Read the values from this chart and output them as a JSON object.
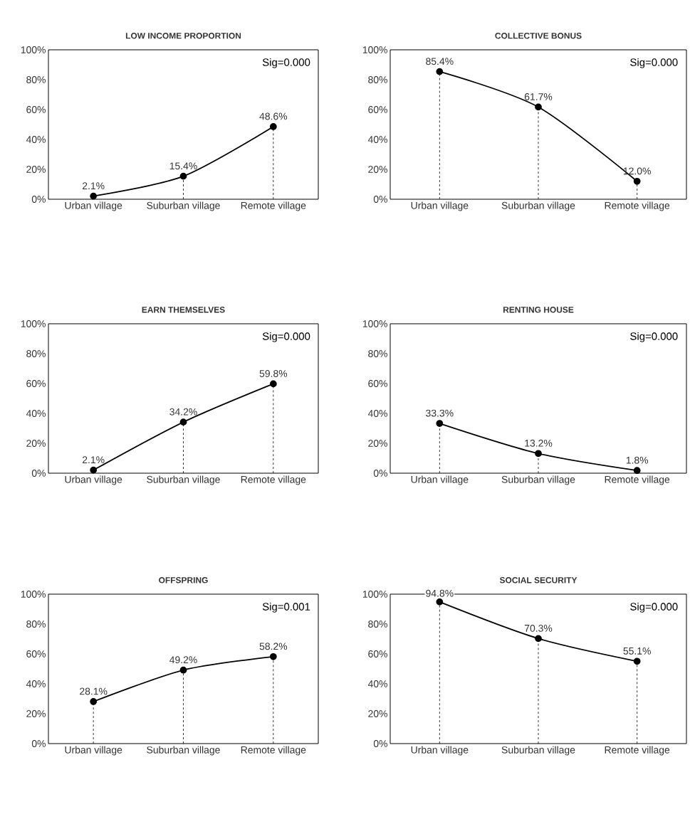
{
  "chart_data": [
    {
      "type": "line",
      "title": "LOW INCOME PROPORTION",
      "categories": [
        "Urban village",
        "Suburban village",
        "Remote village"
      ],
      "values": [
        2.1,
        15.4,
        48.6
      ],
      "value_labels": [
        "2.1%",
        "15.4%",
        "48.6%"
      ],
      "color": "#000000",
      "marker": "circle",
      "line_style": "solid",
      "ylim": [
        0,
        100
      ],
      "yticks": [
        {
          "value": 0,
          "label": "0%"
        },
        {
          "value": 20,
          "label": "20%"
        },
        {
          "value": 40,
          "label": "40%"
        },
        {
          "value": 60,
          "label": "60%"
        },
        {
          "value": 80,
          "label": "80%"
        },
        {
          "value": 100,
          "label": "100%"
        }
      ],
      "annotations": [
        "Sig=0.000"
      ]
    },
    {
      "type": "line",
      "title": "COLLECTIVE BONUS",
      "categories": [
        "Urban village",
        "Suburban village",
        "Remote village"
      ],
      "values": [
        85.4,
        61.7,
        12.0
      ],
      "value_labels": [
        "85.4%",
        "61.7%",
        "12.0%"
      ],
      "color": "#000000",
      "marker": "circle",
      "line_style": "solid",
      "ylim": [
        0,
        100
      ],
      "yticks": [
        {
          "value": 0,
          "label": "0%"
        },
        {
          "value": 20,
          "label": "20%"
        },
        {
          "value": 40,
          "label": "40%"
        },
        {
          "value": 60,
          "label": "60%"
        },
        {
          "value": 80,
          "label": "80%"
        },
        {
          "value": 100,
          "label": "100%"
        }
      ],
      "annotations": [
        "Sig=0.000"
      ]
    },
    {
      "type": "line",
      "title": "EARN THEMSELVES",
      "categories": [
        "Urban village",
        "Suburban village",
        "Remote village"
      ],
      "values": [
        2.1,
        34.2,
        59.8
      ],
      "value_labels": [
        "2.1%",
        "34.2%",
        "59.8%"
      ],
      "color": "#000000",
      "marker": "circle",
      "line_style": "solid",
      "ylim": [
        0,
        100
      ],
      "yticks": [
        {
          "value": 0,
          "label": "0%"
        },
        {
          "value": 20,
          "label": "20%"
        },
        {
          "value": 40,
          "label": "40%"
        },
        {
          "value": 60,
          "label": "60%"
        },
        {
          "value": 80,
          "label": "80%"
        },
        {
          "value": 100,
          "label": "100%"
        }
      ],
      "annotations": [
        "Sig=0.000"
      ]
    },
    {
      "type": "line",
      "title": "RENTING HOUSE",
      "categories": [
        "Urban village",
        "Suburban village",
        "Remote village"
      ],
      "values": [
        33.3,
        13.2,
        1.8
      ],
      "value_labels": [
        "33.3%",
        "13.2%",
        "1.8%"
      ],
      "color": "#000000",
      "marker": "circle",
      "line_style": "solid",
      "ylim": [
        0,
        100
      ],
      "yticks": [
        {
          "value": 0,
          "label": "0%"
        },
        {
          "value": 20,
          "label": "20%"
        },
        {
          "value": 40,
          "label": "40%"
        },
        {
          "value": 60,
          "label": "60%"
        },
        {
          "value": 80,
          "label": "80%"
        },
        {
          "value": 100,
          "label": "100%"
        }
      ],
      "annotations": [
        "Sig=0.000"
      ]
    },
    {
      "type": "line",
      "title": "OFFSPRING",
      "categories": [
        "Urban village",
        "Suburban village",
        "Remote village"
      ],
      "values": [
        28.1,
        49.2,
        58.2
      ],
      "value_labels": [
        "28.1%",
        "49.2%",
        "58.2%"
      ],
      "color": "#000000",
      "marker": "circle",
      "line_style": "solid",
      "ylim": [
        0,
        100
      ],
      "yticks": [
        {
          "value": 0,
          "label": "0%"
        },
        {
          "value": 20,
          "label": "20%"
        },
        {
          "value": 40,
          "label": "40%"
        },
        {
          "value": 60,
          "label": "60%"
        },
        {
          "value": 80,
          "label": "80%"
        },
        {
          "value": 100,
          "label": "100%"
        }
      ],
      "annotations": [
        "Sig=0.001"
      ]
    },
    {
      "type": "line",
      "title": "SOCIAL SECURITY",
      "categories": [
        "Urban village",
        "Suburban village",
        "Remote village"
      ],
      "values": [
        94.8,
        70.3,
        55.1
      ],
      "value_labels": [
        "94.8%",
        "70.3%",
        "55.1%"
      ],
      "color": "#000000",
      "marker": "circle",
      "line_style": "solid",
      "ylim": [
        0,
        100
      ],
      "yticks": [
        {
          "value": 0,
          "label": "0%"
        },
        {
          "value": 20,
          "label": "20%"
        },
        {
          "value": 40,
          "label": "40%"
        },
        {
          "value": 60,
          "label": "60%"
        },
        {
          "value": 80,
          "label": "80%"
        },
        {
          "value": 100,
          "label": "100%"
        }
      ],
      "annotations": [
        "Sig=0.000"
      ]
    }
  ]
}
